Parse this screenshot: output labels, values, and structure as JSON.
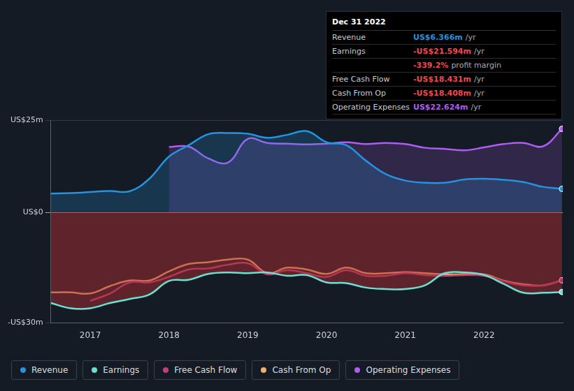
{
  "chart_data": {
    "type": "line",
    "x": [
      2016.5,
      2016.75,
      2017,
      2017.25,
      2017.5,
      2017.75,
      2018,
      2018.25,
      2018.5,
      2018.75,
      2019,
      2019.25,
      2019.5,
      2019.75,
      2020,
      2020.25,
      2020.5,
      2020.75,
      2021,
      2021.25,
      2021.5,
      2021.75,
      2022,
      2022.25,
      2022.5,
      2022.75,
      2022.99
    ],
    "xlim": [
      2016.5,
      2023
    ],
    "xticks": [
      2017,
      2018,
      2019,
      2020,
      2021,
      2022
    ],
    "ylim": [
      -30,
      25
    ],
    "yticks": [
      {
        "value": -30,
        "label": "-US$30m"
      },
      {
        "value": 0,
        "label": "US$0"
      },
      {
        "value": 25,
        "label": "US$25m"
      }
    ],
    "grid": true,
    "legend": "bottom",
    "series": [
      {
        "name": "Revenue",
        "color": "#2394df",
        "values": [
          5.1,
          5.2,
          5.5,
          5.8,
          5.7,
          9.1,
          15.1,
          18.2,
          21.2,
          21.5,
          21.3,
          20.2,
          21.0,
          22.0,
          19.0,
          18.2,
          14.0,
          10.4,
          8.6,
          8.0,
          8.0,
          8.9,
          9.1,
          8.8,
          8.2,
          6.9,
          6.366
        ]
      },
      {
        "name": "Earnings",
        "color": "#6ce0d1",
        "values": [
          -24.6,
          -26.0,
          -26.0,
          -24.6,
          -23.5,
          -22.3,
          -18.6,
          -18.3,
          -16.7,
          -16.3,
          -16.5,
          -16.3,
          -17.2,
          -17.0,
          -19.0,
          -19.2,
          -20.4,
          -20.8,
          -20.8,
          -19.8,
          -16.5,
          -16.3,
          -17.0,
          -19.4,
          -21.8,
          -21.8,
          -21.594
        ]
      },
      {
        "name": "Free Cash Flow",
        "color": "#c83d7d",
        "values": [
          null,
          null,
          -24.0,
          -22.0,
          -19.0,
          -19.0,
          -17.5,
          -15.5,
          -15.2,
          -14.2,
          -13.8,
          -16.8,
          -15.7,
          -16.5,
          -17.5,
          -15.7,
          -17.2,
          -17.2,
          -16.5,
          -17.0,
          -17.2,
          -17.0,
          -17.2,
          -18.7,
          -19.8,
          -19.8,
          -18.431
        ]
      },
      {
        "name": "Cash From Op",
        "color": "#f0b26b",
        "values": [
          -21.7,
          -21.7,
          -22.0,
          -20.0,
          -18.5,
          -18.5,
          -16.0,
          -14.0,
          -13.5,
          -12.8,
          -12.8,
          -16.5,
          -15.0,
          -15.5,
          -16.7,
          -15.0,
          -16.5,
          -16.5,
          -16.2,
          -16.5,
          -16.8,
          -16.8,
          -16.8,
          -18.5,
          -19.5,
          -19.8,
          -18.408
        ]
      },
      {
        "name": "Operating Expenses",
        "color": "#b05cf0",
        "values": [
          null,
          null,
          null,
          null,
          null,
          null,
          17.7,
          17.8,
          14.6,
          13.5,
          19.9,
          18.8,
          18.6,
          18.4,
          18.6,
          19.0,
          18.5,
          18.8,
          18.5,
          17.5,
          17.2,
          16.8,
          17.6,
          18.5,
          18.8,
          17.9,
          22.624
        ]
      }
    ],
    "annotation": {
      "title": "Dec 31 2022",
      "rows": [
        {
          "label": "Revenue",
          "value": "US$6.366m",
          "unit": "/yr",
          "color": "#2394df"
        },
        {
          "label": "Earnings",
          "value": "-US$21.594m",
          "unit": "/yr",
          "color": "#f0484f"
        },
        {
          "value": "-339.2%",
          "unit": "profit margin",
          "color": "#f0484f"
        },
        {
          "label": "Free Cash Flow",
          "value": "-US$18.431m",
          "unit": "/yr",
          "color": "#f0484f"
        },
        {
          "label": "Cash From Op",
          "value": "-US$18.408m",
          "unit": "/yr",
          "color": "#f0484f"
        },
        {
          "label": "Operating Expenses",
          "value": "US$22.624m",
          "unit": "/yr",
          "color": "#b05cf0"
        }
      ]
    }
  }
}
